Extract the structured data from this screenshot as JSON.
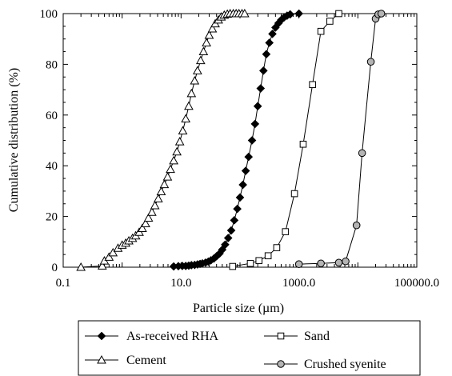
{
  "chart_data": {
    "type": "scatter",
    "xlabel": "Particle size (µm)",
    "ylabel": "Cumulative distribution (%)",
    "xscale": "log",
    "xlim": [
      0.1,
      100000
    ],
    "ylim": [
      0,
      100
    ],
    "xtick_labels": [
      {
        "value": 0.1,
        "label": "0.1"
      },
      {
        "value": 10,
        "label": "10.0"
      },
      {
        "value": 1000,
        "label": "1000.0"
      },
      {
        "value": 100000,
        "label": "100000.0"
      }
    ],
    "yticks": [
      0,
      20,
      40,
      60,
      80,
      100
    ],
    "grid": false,
    "legend_position": "bottom",
    "series": [
      {
        "name": "As-received RHA",
        "marker": "diamond",
        "marker_fill": "#000000",
        "x": [
          7.5,
          9,
          10.5,
          12,
          13.5,
          15,
          17,
          19,
          21,
          23,
          26,
          29,
          32,
          36,
          40,
          45,
          50,
          56,
          63,
          71,
          80,
          90,
          100,
          112,
          125,
          140,
          160,
          180,
          200,
          224,
          250,
          280,
          315,
          355,
          400,
          450,
          500,
          560,
          630,
          710,
          1000
        ],
        "y": [
          0.3,
          0.4,
          0.5,
          0.5,
          0.6,
          0.8,
          0.9,
          1.1,
          1.3,
          1.5,
          1.8,
          2.2,
          2.7,
          3.4,
          4.3,
          5.4,
          6.9,
          8.9,
          11.5,
          14.5,
          18.5,
          23,
          27.5,
          32.5,
          38,
          43.5,
          50,
          56.5,
          63.5,
          70.5,
          77.5,
          84,
          88.5,
          92,
          94.5,
          96.2,
          97.5,
          98.5,
          99.2,
          99.7,
          100
        ]
      },
      {
        "name": "Cement",
        "marker": "triangle",
        "marker_fill": "#ffffff",
        "x": [
          0.2,
          0.46,
          0.5,
          0.6,
          0.7,
          0.85,
          1.0,
          1.15,
          1.3,
          1.5,
          1.7,
          1.95,
          2.2,
          2.5,
          2.8,
          3.2,
          3.6,
          4.1,
          4.6,
          5.2,
          5.9,
          6.6,
          7.5,
          8.5,
          9.5,
          10.7,
          12,
          13.5,
          15,
          17,
          19,
          21.5,
          24,
          27,
          30,
          34,
          38,
          43,
          48,
          54,
          61,
          68,
          77,
          86,
          96,
          108,
          120
        ],
        "y": [
          0,
          0.5,
          2.5,
          4,
          5.7,
          7.5,
          8.7,
          9.5,
          10.4,
          11.4,
          12.4,
          13.8,
          15.3,
          17.2,
          19.4,
          21.7,
          24.3,
          27,
          29.8,
          32.6,
          35.6,
          38.6,
          42,
          45.5,
          49.5,
          53.8,
          58.5,
          63.5,
          68.5,
          73.5,
          77.5,
          81.5,
          85,
          88.5,
          91.5,
          94,
          96,
          97.5,
          98.7,
          99.4,
          99.8,
          100,
          100,
          100,
          100,
          100,
          100
        ]
      },
      {
        "name": "Sand",
        "marker": "square",
        "marker_fill": "#ffffff",
        "x": [
          75,
          150,
          210,
          300,
          420,
          590,
          840,
          1180,
          1700,
          2360,
          3350,
          4750
        ],
        "y": [
          0.3,
          1.5,
          2.6,
          4.5,
          7.7,
          14,
          29,
          48.5,
          72,
          93,
          97,
          100
        ]
      },
      {
        "name": "Crushed syenite",
        "marker": "circle",
        "marker_fill": "#b4b4b4",
        "x": [
          1000,
          2360,
          4750,
          6200,
          9500,
          11800,
          16600,
          20000,
          22200,
          25000
        ],
        "y": [
          1.2,
          1.5,
          1.8,
          2.3,
          16.5,
          45,
          81,
          98,
          99.7,
          100
        ]
      }
    ]
  }
}
